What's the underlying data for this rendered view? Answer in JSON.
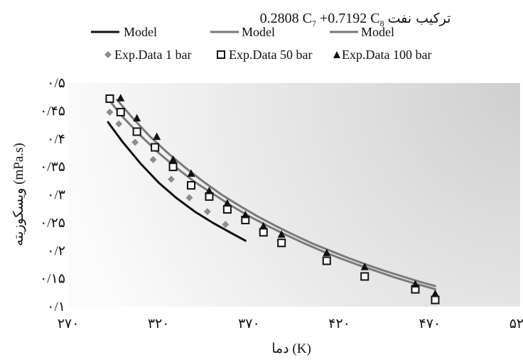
{
  "chart_data": {
    "type": "scatter",
    "title_prefix": "ترکیب نفت",
    "title_formula": {
      "a": "0.2808 C",
      "a_sub": "7",
      "b": " +0.7192 C",
      "b_sub": "8"
    },
    "xlabel": "دما (K)",
    "ylabel": "ویسکوزیته (mPa.s)",
    "xlim": [
      270,
      520
    ],
    "ylim": [
      0.1,
      0.5
    ],
    "x_ticks": [
      270,
      320,
      370,
      420,
      470,
      520
    ],
    "x_tick_labels": [
      "۲۷۰",
      "۳۲۰",
      "۳۷۰",
      "۴۲۰",
      "۴۷۰",
      "۵۲۰"
    ],
    "y_ticks": [
      0.1,
      0.15,
      0.2,
      0.25,
      0.3,
      0.35,
      0.4,
      0.45,
      0.5
    ],
    "y_tick_labels": [
      "۰/۱",
      "۰/۱۵",
      "۰/۲",
      "۰/۲۵",
      "۰/۳",
      "۰/۳۵",
      "۰/۴",
      "۰/۴۵",
      "۰/۵"
    ],
    "legend": {
      "placement": "top",
      "line_entries": [
        {
          "label": "Model",
          "color": "#111111"
        },
        {
          "label": "Model",
          "color": "#7a7a7a"
        },
        {
          "label": "Model",
          "color": "#7a7a7a"
        }
      ],
      "marker_entries": [
        {
          "label": "Exp.Data 1 bar",
          "marker": "diamond"
        },
        {
          "label": "Exp.Data 50 bar",
          "marker": "square"
        },
        {
          "label": "Exp.Data 100 bar",
          "marker": "triangle"
        }
      ]
    },
    "series": [
      {
        "label": "Exp.Data 1 bar",
        "marker": "diamond",
        "color": "#8c8c8c",
        "x": [
          293,
          298,
          307,
          317,
          327,
          337,
          347,
          357
        ],
        "y": [
          0.448,
          0.427,
          0.394,
          0.363,
          0.328,
          0.295,
          0.27,
          0.247
        ]
      },
      {
        "label": "Exp.Data 50 bar",
        "marker": "square",
        "color": "#111111",
        "x": [
          293,
          299,
          308,
          318,
          328,
          338,
          348,
          358,
          368,
          378,
          388,
          413,
          434,
          462,
          473
        ],
        "y": [
          0.472,
          0.448,
          0.413,
          0.385,
          0.35,
          0.317,
          0.297,
          0.274,
          0.255,
          0.233,
          0.214,
          0.182,
          0.154,
          0.131,
          0.112
        ]
      },
      {
        "label": "Exp.Data 100 bar",
        "marker": "triangle",
        "color": "#111111",
        "x": [
          299,
          308,
          319,
          328,
          338,
          348,
          358,
          368,
          378,
          388,
          413,
          434,
          462,
          473
        ],
        "y": [
          0.473,
          0.437,
          0.404,
          0.363,
          0.338,
          0.307,
          0.285,
          0.264,
          0.244,
          0.229,
          0.196,
          0.171,
          0.14,
          0.123
        ]
      }
    ],
    "model_lines": [
      {
        "label": "Model",
        "color": "#111111",
        "x": [
          292,
          300,
          310,
          320,
          330,
          340,
          350,
          360,
          368
        ],
        "y": [
          0.43,
          0.395,
          0.356,
          0.322,
          0.294,
          0.27,
          0.25,
          0.232,
          0.218
        ]
      },
      {
        "label": "Model",
        "color": "#7a7a7a",
        "x": [
          293,
          300,
          310,
          320,
          330,
          340,
          350,
          360,
          370,
          380,
          390,
          400,
          410,
          420,
          430,
          440,
          450,
          460,
          470,
          473
        ],
        "y": [
          0.468,
          0.44,
          0.406,
          0.375,
          0.348,
          0.323,
          0.302,
          0.281,
          0.262,
          0.245,
          0.229,
          0.214,
          0.2,
          0.187,
          0.175,
          0.164,
          0.153,
          0.143,
          0.134,
          0.131
        ]
      },
      {
        "label": "Model",
        "color": "#7a7a7a",
        "x": [
          297,
          305,
          315,
          325,
          335,
          345,
          355,
          365,
          375,
          385,
          395,
          405,
          415,
          425,
          435,
          445,
          455,
          465,
          473
        ],
        "y": [
          0.47,
          0.44,
          0.405,
          0.375,
          0.348,
          0.323,
          0.3,
          0.28,
          0.261,
          0.244,
          0.228,
          0.213,
          0.2,
          0.187,
          0.175,
          0.164,
          0.154,
          0.144,
          0.137
        ]
      }
    ]
  }
}
